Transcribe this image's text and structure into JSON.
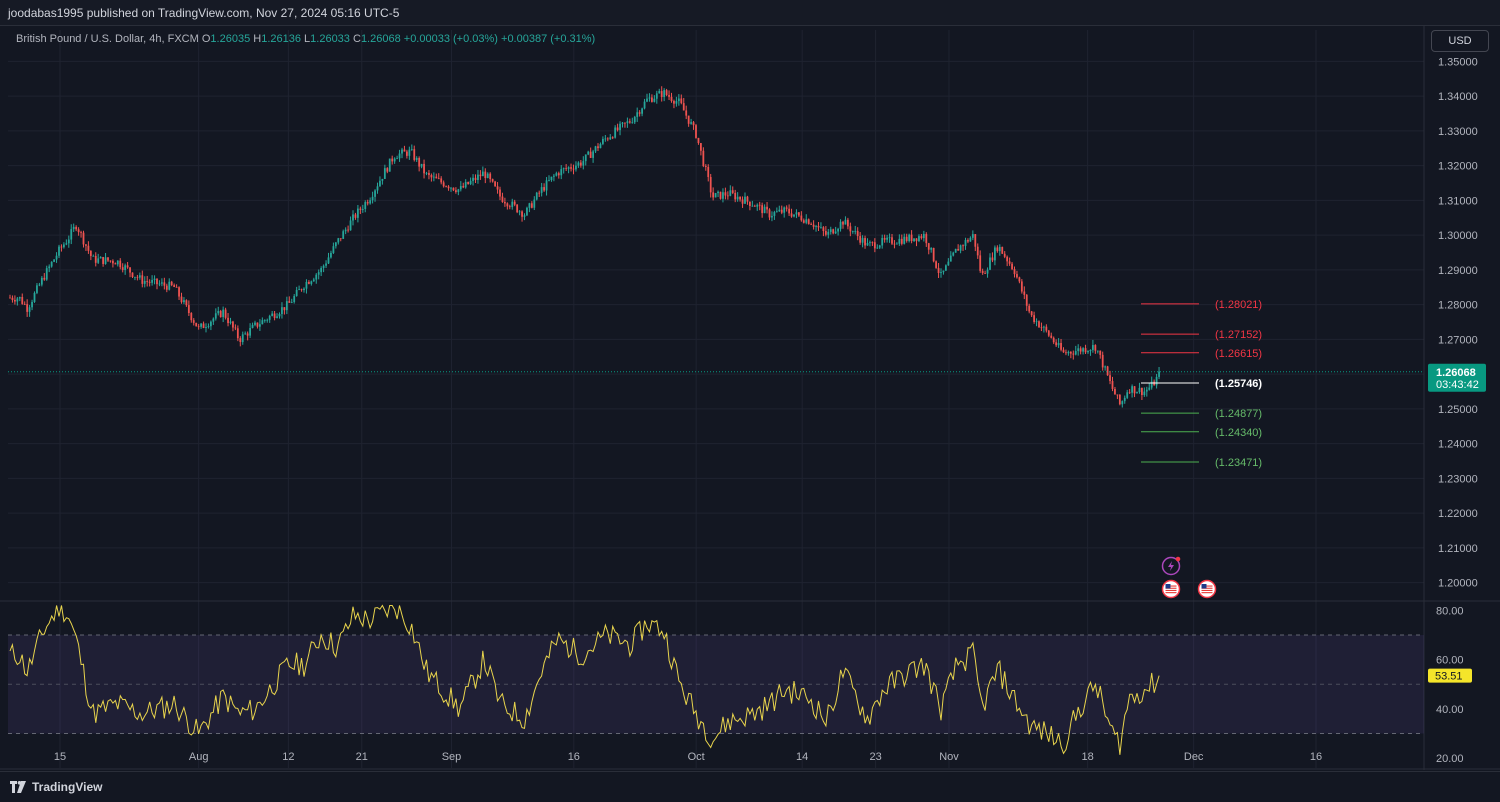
{
  "header": {
    "published": "joodabas1995 published on TradingView.com, Nov 27, 2024 05:16 UTC-5"
  },
  "legend": {
    "symbol": "British Pound / U.S. Dollar, 4h, FXCM",
    "o_label": "O",
    "o": "1.26035",
    "h_label": "H",
    "h": "1.26136",
    "l_label": "L",
    "l": "1.26033",
    "c_label": "C",
    "c": "1.26068",
    "change": "+0.00033 (+0.03%)",
    "change2": "+0.00387 (+0.31%)"
  },
  "currency_button": "USD",
  "footer": {
    "brand": "TradingView"
  },
  "colors": {
    "background": "#131722",
    "up": "#26a69a",
    "down": "#ef5350",
    "resistance": "#f23645",
    "support": "#4caf50",
    "pivot": "#ffffff",
    "rsi_line": "#e8d44d",
    "rsi_band": "#7e57c2",
    "price_badge": "#089981",
    "rsi_badge": "#f5e52a"
  },
  "chart_data": [
    {
      "type": "candlestick",
      "symbol": "GBP/USD",
      "timeframe": "4h",
      "ylim": [
        1.195,
        1.355
      ],
      "y_ticks": [
        "1.35000",
        "1.34000",
        "1.33000",
        "1.32000",
        "1.31000",
        "1.30000",
        "1.29000",
        "1.28000",
        "1.27000",
        "1.26000",
        "1.25000",
        "1.24000",
        "1.23000",
        "1.22000",
        "1.21000",
        "1.20000"
      ],
      "x_ticks": [
        "15",
        "Aug",
        "12",
        "21",
        "Sep",
        "16",
        "Oct",
        "14",
        "23",
        "Nov",
        "18",
        "Dec",
        "16"
      ],
      "current_price": "1.26068",
      "countdown": "03:43:42",
      "path": [
        {
          "d": "Jul 10",
          "v": 1.282
        },
        {
          "d": "Jul 11",
          "v": 1.279
        },
        {
          "d": "Jul 13",
          "v": 1.288
        },
        {
          "d": "Jul 15",
          "v": 1.296
        },
        {
          "d": "Jul 16",
          "v": 1.299
        },
        {
          "d": "Jul 17",
          "v": 1.303
        },
        {
          "d": "Jul 19",
          "v": 1.293
        },
        {
          "d": "Jul 22",
          "v": 1.2925
        },
        {
          "d": "Jul 25",
          "v": 1.287
        },
        {
          "d": "Jul 29",
          "v": 1.285
        },
        {
          "d": "Aug 1",
          "v": 1.273
        },
        {
          "d": "Aug 4",
          "v": 1.278
        },
        {
          "d": "Aug 6",
          "v": 1.27
        },
        {
          "d": "Aug 8",
          "v": 1.274
        },
        {
          "d": "Aug 12",
          "v": 1.28
        },
        {
          "d": "Aug 14",
          "v": 1.286
        },
        {
          "d": "Aug 16",
          "v": 1.29
        },
        {
          "d": "Aug 18",
          "v": 1.298
        },
        {
          "d": "Aug 20",
          "v": 1.305
        },
        {
          "d": "Aug 22",
          "v": 1.311
        },
        {
          "d": "Aug 25",
          "v": 1.323
        },
        {
          "d": "Aug 27",
          "v": 1.324
        },
        {
          "d": "Aug 29",
          "v": 1.317
        },
        {
          "d": "Sep 2",
          "v": 1.313
        },
        {
          "d": "Sep 5",
          "v": 1.318
        },
        {
          "d": "Sep 7",
          "v": 1.311
        },
        {
          "d": "Sep 10",
          "v": 1.306
        },
        {
          "d": "Sep 12",
          "v": 1.313
        },
        {
          "d": "Sep 14",
          "v": 1.318
        },
        {
          "d": "Sep 17",
          "v": 1.321
        },
        {
          "d": "Sep 20",
          "v": 1.328
        },
        {
          "d": "Sep 23",
          "v": 1.333
        },
        {
          "d": "Sep 25",
          "v": 1.339
        },
        {
          "d": "Sep 27",
          "v": 1.341
        },
        {
          "d": "Sep 29",
          "v": 1.338
        },
        {
          "d": "Oct 1",
          "v": 1.329
        },
        {
          "d": "Oct 3",
          "v": 1.311
        },
        {
          "d": "Oct 5",
          "v": 1.312
        },
        {
          "d": "Oct 8",
          "v": 1.309
        },
        {
          "d": "Oct 10",
          "v": 1.306
        },
        {
          "d": "Oct 12",
          "v": 1.307
        },
        {
          "d": "Oct 15",
          "v": 1.304
        },
        {
          "d": "Oct 17",
          "v": 1.3
        },
        {
          "d": "Oct 19",
          "v": 1.304
        },
        {
          "d": "Oct 22",
          "v": 1.297
        },
        {
          "d": "Oct 24",
          "v": 1.298
        },
        {
          "d": "Oct 27",
          "v": 1.299
        },
        {
          "d": "Oct 29",
          "v": 1.3
        },
        {
          "d": "Oct 31",
          "v": 1.288
        },
        {
          "d": "Nov 2",
          "v": 1.296
        },
        {
          "d": "Nov 4",
          "v": 1.3
        },
        {
          "d": "Nov 5",
          "v": 1.288
        },
        {
          "d": "Nov 7",
          "v": 1.297
        },
        {
          "d": "Nov 9",
          "v": 1.29
        },
        {
          "d": "Nov 11",
          "v": 1.277
        },
        {
          "d": "Nov 13",
          "v": 1.272
        },
        {
          "d": "Nov 15",
          "v": 1.266
        },
        {
          "d": "Nov 17",
          "v": 1.267
        },
        {
          "d": "Nov 19",
          "v": 1.268
        },
        {
          "d": "Nov 21",
          "v": 1.256
        },
        {
          "d": "Nov 22",
          "v": 1.251
        },
        {
          "d": "Nov 23",
          "v": 1.256
        },
        {
          "d": "Nov 25",
          "v": 1.255
        },
        {
          "d": "Nov 26",
          "v": 1.257
        },
        {
          "d": "Nov 27",
          "v": 1.26068
        }
      ],
      "levels": [
        {
          "value": 1.28021,
          "label": "(1.28021)",
          "kind": "resistance"
        },
        {
          "value": 1.27152,
          "label": "(1.27152)",
          "kind": "resistance"
        },
        {
          "value": 1.26615,
          "label": "(1.26615)",
          "kind": "resistance"
        },
        {
          "value": 1.25746,
          "label": "(1.25746)",
          "kind": "pivot"
        },
        {
          "value": 1.24877,
          "label": "(1.24877)",
          "kind": "support"
        },
        {
          "value": 1.2434,
          "label": "(1.24340)",
          "kind": "support"
        },
        {
          "value": 1.23471,
          "label": "(1.23471)",
          "kind": "support"
        }
      ],
      "events": [
        {
          "icon": "lightning-icon",
          "d": "Nov 28"
        },
        {
          "icon": "us-flag-icon",
          "d": "Nov 28"
        },
        {
          "icon": "us-flag-icon",
          "d": "Dec 1"
        }
      ]
    },
    {
      "type": "line",
      "indicator": "RSI",
      "ylim": [
        16,
        83
      ],
      "y_ticks": [
        "80.00",
        "60.00",
        "40.00",
        "20.00"
      ],
      "band": [
        30,
        70
      ],
      "current_value": "53.51",
      "path": [
        {
          "d": "Jul 10",
          "v": 62
        },
        {
          "d": "Jul 11",
          "v": 55
        },
        {
          "d": "Jul 13",
          "v": 72
        },
        {
          "d": "Jul 15",
          "v": 82
        },
        {
          "d": "Jul 16",
          "v": 78
        },
        {
          "d": "Jul 17",
          "v": 68
        },
        {
          "d": "Jul 19",
          "v": 38
        },
        {
          "d": "Jul 22",
          "v": 42
        },
        {
          "d": "Jul 25",
          "v": 38
        },
        {
          "d": "Jul 29",
          "v": 42
        },
        {
          "d": "Aug 1",
          "v": 30
        },
        {
          "d": "Aug 4",
          "v": 45
        },
        {
          "d": "Aug 6",
          "v": 38
        },
        {
          "d": "Aug 8",
          "v": 40
        },
        {
          "d": "Aug 12",
          "v": 58
        },
        {
          "d": "Aug 14",
          "v": 58
        },
        {
          "d": "Aug 16",
          "v": 70
        },
        {
          "d": "Aug 18",
          "v": 65
        },
        {
          "d": "Aug 20",
          "v": 78
        },
        {
          "d": "Aug 22",
          "v": 76
        },
        {
          "d": "Aug 25",
          "v": 82
        },
        {
          "d": "Aug 27",
          "v": 74
        },
        {
          "d": "Aug 29",
          "v": 55
        },
        {
          "d": "Sep 2",
          "v": 40
        },
        {
          "d": "Sep 5",
          "v": 60
        },
        {
          "d": "Sep 7",
          "v": 42
        },
        {
          "d": "Sep 10",
          "v": 36
        },
        {
          "d": "Sep 12",
          "v": 55
        },
        {
          "d": "Sep 14",
          "v": 68
        },
        {
          "d": "Sep 17",
          "v": 62
        },
        {
          "d": "Sep 20",
          "v": 70
        },
        {
          "d": "Sep 23",
          "v": 66
        },
        {
          "d": "Sep 25",
          "v": 75
        },
        {
          "d": "Sep 27",
          "v": 72
        },
        {
          "d": "Sep 29",
          "v": 50
        },
        {
          "d": "Oct 1",
          "v": 38
        },
        {
          "d": "Oct 3",
          "v": 28
        },
        {
          "d": "Oct 5",
          "v": 35
        },
        {
          "d": "Oct 8",
          "v": 38
        },
        {
          "d": "Oct 10",
          "v": 42
        },
        {
          "d": "Oct 12",
          "v": 48
        },
        {
          "d": "Oct 15",
          "v": 44
        },
        {
          "d": "Oct 17",
          "v": 35
        },
        {
          "d": "Oct 19",
          "v": 55
        },
        {
          "d": "Oct 22",
          "v": 36
        },
        {
          "d": "Oct 24",
          "v": 48
        },
        {
          "d": "Oct 27",
          "v": 55
        },
        {
          "d": "Oct 29",
          "v": 58
        },
        {
          "d": "Oct 31",
          "v": 40
        },
        {
          "d": "Nov 2",
          "v": 58
        },
        {
          "d": "Nov 4",
          "v": 62
        },
        {
          "d": "Nov 5",
          "v": 40
        },
        {
          "d": "Nov 7",
          "v": 56
        },
        {
          "d": "Nov 9",
          "v": 44
        },
        {
          "d": "Nov 11",
          "v": 33
        },
        {
          "d": "Nov 13",
          "v": 30
        },
        {
          "d": "Nov 15",
          "v": 26
        },
        {
          "d": "Nov 17",
          "v": 40
        },
        {
          "d": "Nov 19",
          "v": 50
        },
        {
          "d": "Nov 21",
          "v": 30
        },
        {
          "d": "Nov 22",
          "v": 26
        },
        {
          "d": "Nov 23",
          "v": 44
        },
        {
          "d": "Nov 25",
          "v": 48
        },
        {
          "d": "Nov 26",
          "v": 50
        },
        {
          "d": "Nov 27",
          "v": 53.51
        }
      ]
    }
  ]
}
